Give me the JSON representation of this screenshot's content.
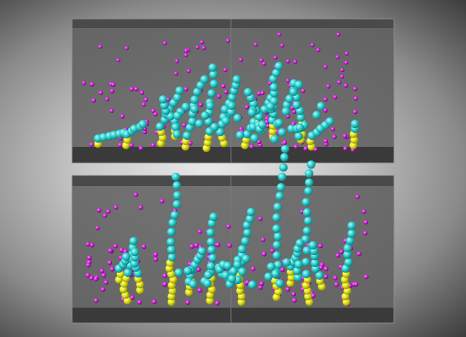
{
  "scene": {
    "panels": [
      {
        "name": "top-simulation-box",
        "description_colors": true
      },
      {
        "name": "bottom-simulation-box",
        "description_colors": true
      }
    ],
    "colors": {
      "background_center": "#e8e8e8",
      "background_edge": "#3c3c3c",
      "box_back": "#5e5e5e",
      "box_floor": "#3a3a3a",
      "box_top": "#4a4a4a",
      "box_edge": "#8a8a8a",
      "ion": "#d020d8",
      "ion_highlight": "#ff8cff",
      "chain_head": "#2ed4d4",
      "chain_head_highlight": "#bff7f7",
      "chain_anchor": "#e6e61a",
      "chain_anchor_highlight": "#ffffa8"
    }
  }
}
